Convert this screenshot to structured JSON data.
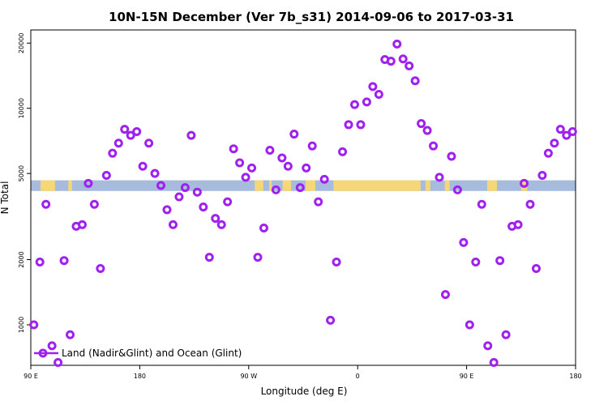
{
  "chart_data": {
    "type": "scatter",
    "title": "10N-15N December (Ver 7b_s31)   2014-09-06 to 2017-03-31",
    "xlabel": "Longitude (deg E)",
    "ylabel": "N Total",
    "x_ticks": [
      {
        "value": 90,
        "label": "90 E"
      },
      {
        "value": 180,
        "label": "180"
      },
      {
        "value": 270,
        "label": "90 W"
      },
      {
        "value": 360,
        "label": "0"
      },
      {
        "value": 450,
        "label": "90 E"
      },
      {
        "value": 540,
        "label": "180"
      }
    ],
    "y_ticks": [
      1000,
      2000,
      5000,
      10000,
      20000
    ],
    "xlim": [
      90,
      540
    ],
    "ylim": [
      650,
      23000
    ],
    "y_scale": "log",
    "land_band": {
      "y_range": [
        4150,
        4650
      ],
      "ocean_color": "#A7BCDC",
      "land_color": "#F5D77A",
      "land_segments_lon": [
        [
          98,
          110
        ],
        [
          121,
          124
        ],
        [
          275,
          282
        ],
        [
          287,
          289
        ],
        [
          298,
          305
        ],
        [
          317,
          325
        ],
        [
          340,
          412
        ],
        [
          416,
          420
        ],
        [
          432,
          436
        ],
        [
          467,
          475
        ],
        [
          495,
          500
        ]
      ]
    },
    "series": [
      {
        "name": "Land (Nadir&Glint) and Ocean (Glint)",
        "color": "#A020F0",
        "x": [
          92.5,
          97.5,
          102.5,
          107.5,
          112.5,
          117.5,
          122.5,
          127.5,
          132.5,
          137.5,
          142.5,
          147.5,
          152.5,
          157.5,
          162.5,
          167.5,
          172.5,
          177.5,
          182.5,
          187.5,
          192.5,
          197.5,
          202.5,
          207.5,
          212.5,
          217.5,
          222.5,
          227.5,
          232.5,
          237.5,
          242.5,
          247.5,
          252.5,
          257.5,
          262.5,
          267.5,
          272.5,
          277.5,
          282.5,
          287.5,
          292.5,
          297.5,
          302.5,
          307.5,
          312.5,
          317.5,
          322.5,
          327.5,
          332.5,
          337.5,
          342.5,
          347.5,
          352.5,
          357.5,
          362.5,
          367.5,
          372.5,
          377.5,
          382.5,
          387.5,
          392.5,
          397.5,
          402.5,
          407.5,
          412.5,
          417.5,
          422.5,
          427.5,
          432.5,
          437.5,
          442.5,
          447.5,
          452.5,
          457.5,
          462.5,
          467.5,
          472.5,
          477.5,
          482.5,
          487.5,
          492.5,
          497.5,
          502.5,
          507.5,
          512.5,
          517.5,
          522.5,
          527.5,
          532.5,
          537.5
        ],
        "y": [
          1000,
          1950,
          3600,
          800,
          670,
          1980,
          900,
          2850,
          2900,
          4500,
          3600,
          1820,
          4900,
          6200,
          6900,
          8000,
          7500,
          7800,
          5400,
          6900,
          5000,
          4400,
          3400,
          2900,
          3900,
          4300,
          7500,
          4100,
          3500,
          2050,
          3100,
          2900,
          3700,
          6500,
          5600,
          4800,
          5300,
          2050,
          2800,
          6400,
          4200,
          5900,
          5400,
          7600,
          4300,
          5300,
          6700,
          3700,
          4700,
          1050,
          1950,
          6300,
          8400,
          10400,
          8400,
          10700,
          12600,
          11600,
          16800,
          16500,
          19800,
          16900,
          15700,
          13400,
          8500,
          7900,
          6700,
          4800,
          1380,
          6000,
          4200,
          2400,
          1000,
          1950,
          3600,
          800,
          670,
          1980,
          900,
          2850,
          2900,
          4500,
          3600,
          1820,
          4900,
          6200,
          6900,
          8000,
          7500,
          7800
        ]
      }
    ],
    "legend_position": "bottom-left"
  }
}
